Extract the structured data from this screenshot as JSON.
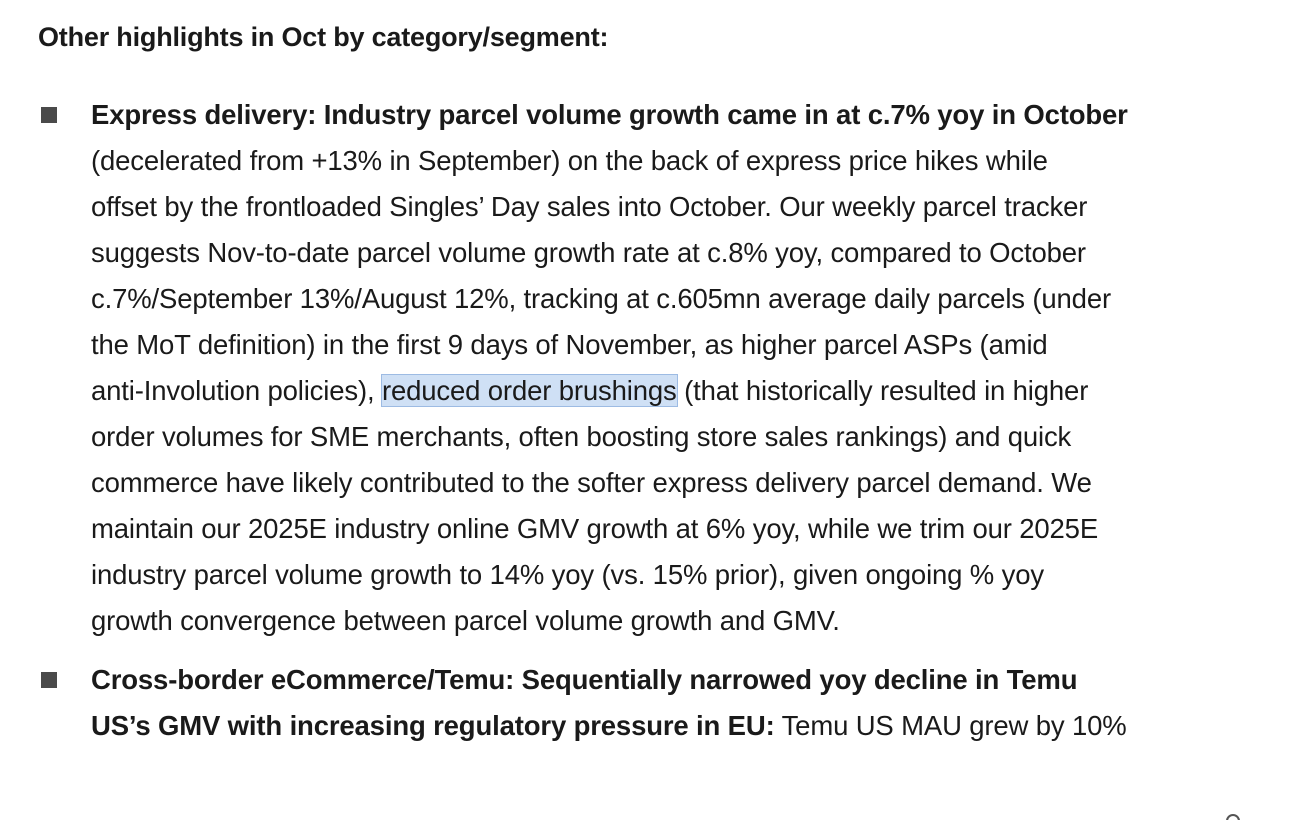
{
  "heading": "Other highlights in Oct by category/segment:",
  "bullets": [
    {
      "lines": [
        {
          "bold": "Express delivery: Industry parcel volume growth came in at c.7% yoy in October"
        },
        {
          "text": "(decelerated from +13% in September) on the back of express price hikes while"
        },
        {
          "text": "offset by the frontloaded Singles’ Day sales into October. Our weekly parcel tracker"
        },
        {
          "text": "suggests Nov-to-date parcel volume growth rate at c.8% yoy, compared to October"
        },
        {
          "text": "c.7%/September 13%/August 12%, tracking at c.605mn average daily parcels (under"
        },
        {
          "text": "the MoT definition) in the first 9 days of November, as higher parcel ASPs (amid"
        },
        {
          "pre": "anti-Involution policies), ",
          "selected": "reduced order brushings",
          "post": " (that historically resulted in higher"
        },
        {
          "text": "order volumes for SME merchants, often boosting store sales rankings) and quick"
        },
        {
          "text": "commerce have likely contributed to the softer express delivery parcel demand. We"
        },
        {
          "text": "maintain our 2025E industry online GMV growth at 6% yoy, while we trim our 2025E"
        },
        {
          "text": "industry parcel volume growth to 14% yoy (vs. 15% prior), given ongoing % yoy"
        },
        {
          "text": "growth convergence between parcel volume growth and GMV."
        }
      ]
    },
    {
      "lines": [
        {
          "bold": "Cross-border eCommerce/Temu: Sequentially narrowed yoy decline in Temu"
        },
        {
          "bold": "US’s GMV with increasing regulatory pressure in EU:",
          "post": " Temu US MAU grew by 10%"
        }
      ]
    }
  ],
  "colors": {
    "text": "#1a1a1a",
    "bullet": "#4a4a4a",
    "selection": "#cfe0f5"
  }
}
